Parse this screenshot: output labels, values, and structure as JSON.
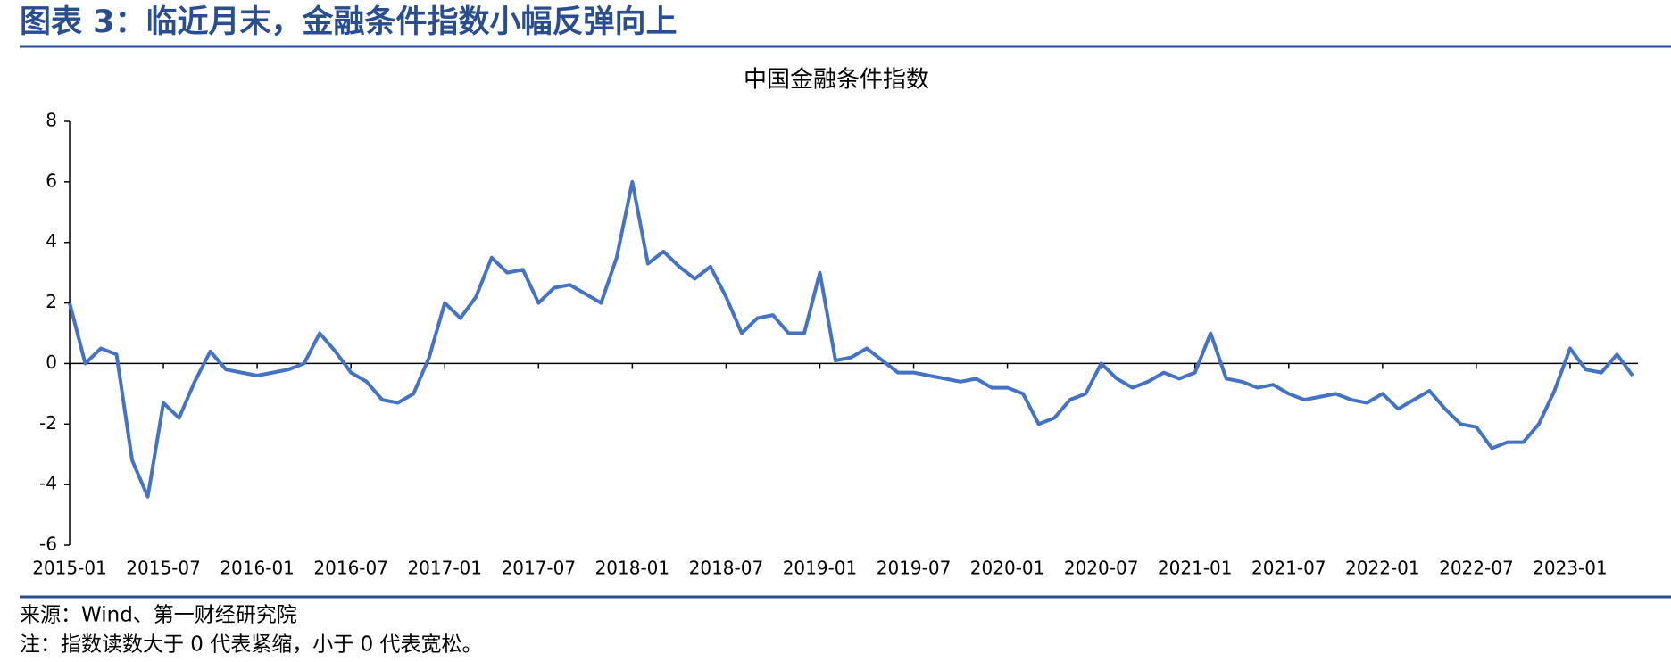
{
  "header": {
    "title": "图表 3：临近月末，金融条件指数小幅反弹向上"
  },
  "chart_data": {
    "type": "line",
    "title": "中国金融条件指数",
    "categories": [
      "2015-01",
      null,
      null,
      null,
      null,
      null,
      "2015-07",
      null,
      null,
      null,
      null,
      null,
      "2016-01",
      null,
      null,
      null,
      null,
      null,
      "2016-07",
      null,
      null,
      null,
      null,
      null,
      "2017-01",
      null,
      null,
      null,
      null,
      null,
      "2017-07",
      null,
      null,
      null,
      null,
      null,
      "2018-01",
      null,
      null,
      null,
      null,
      null,
      "2018-07",
      null,
      null,
      null,
      null,
      null,
      "2019-01",
      null,
      null,
      null,
      null,
      null,
      "2019-07",
      null,
      null,
      null,
      null,
      null,
      "2020-01",
      null,
      null,
      null,
      null,
      null,
      "2020-07",
      null,
      null,
      null,
      null,
      null,
      "2021-01",
      null,
      null,
      null,
      null,
      null,
      "2021-07",
      null,
      null,
      null,
      null,
      null,
      "2022-01",
      null,
      null,
      null,
      null,
      null,
      "2022-07",
      null,
      null,
      null,
      null,
      null,
      "2023-01",
      null,
      null,
      null,
      null
    ],
    "series": [
      {
        "name": "中国金融条件指数",
        "color": "#4472c4",
        "values": [
          2.0,
          0.0,
          0.5,
          0.3,
          -3.2,
          -4.4,
          -1.3,
          -1.8,
          -0.6,
          0.4,
          -0.2,
          -0.3,
          -0.4,
          -0.3,
          -0.2,
          0.0,
          1.0,
          0.4,
          -0.3,
          -0.6,
          -1.2,
          -1.3,
          -1.0,
          0.2,
          2.0,
          1.5,
          2.2,
          3.5,
          3.0,
          3.1,
          2.0,
          2.5,
          2.6,
          2.3,
          2.0,
          3.5,
          6.0,
          3.3,
          3.7,
          3.2,
          2.8,
          3.2,
          2.2,
          1.0,
          1.5,
          1.6,
          1.0,
          1.0,
          3.0,
          0.1,
          0.2,
          0.5,
          0.1,
          -0.3,
          -0.3,
          -0.4,
          -0.5,
          -0.6,
          -0.5,
          -0.8,
          -0.8,
          -1.0,
          -2.0,
          -1.8,
          -1.2,
          -1.0,
          0.0,
          -0.5,
          -0.8,
          -0.6,
          -0.3,
          -0.5,
          -0.3,
          1.0,
          -0.5,
          -0.6,
          -0.8,
          -0.7,
          -1.0,
          -1.2,
          -1.1,
          -1.0,
          -1.2,
          -1.3,
          -1.0,
          -1.5,
          -1.2,
          -0.9,
          -1.5,
          -2.0,
          -2.1,
          -2.8,
          -2.6,
          -2.6,
          -2.0,
          -0.9,
          0.5,
          -0.2,
          -0.3,
          0.3,
          -0.4
        ]
      }
    ],
    "ylim": [
      -6,
      8
    ],
    "yticks": [
      -6,
      -4,
      -2,
      0,
      2,
      4,
      6,
      8
    ]
  },
  "footer": {
    "source": "来源：Wind、第一财经研究院",
    "note": "注：指数读数大于 0 代表紧缩，小于 0 代表宽松。"
  }
}
